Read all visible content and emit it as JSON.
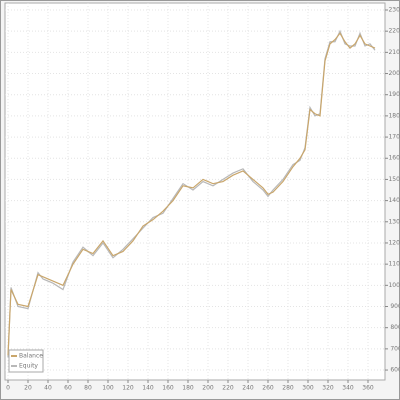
{
  "chart_data": {
    "type": "line",
    "x": [
      0,
      3,
      10,
      20,
      30,
      35,
      45,
      55,
      65,
      75,
      85,
      95,
      105,
      115,
      125,
      135,
      145,
      155,
      165,
      175,
      185,
      195,
      205,
      215,
      225,
      235,
      245,
      255,
      260,
      265,
      275,
      285,
      292,
      297,
      302,
      307,
      312,
      317,
      322,
      327,
      332,
      337,
      342,
      347,
      352,
      357,
      362,
      367
    ],
    "series": [
      {
        "name": "Balance",
        "color": "#c9a66b",
        "values": [
          6700,
          9800,
          9100,
          9000,
          10500,
          10400,
          10200,
          10000,
          11000,
          11700,
          11500,
          12100,
          11400,
          11600,
          12100,
          12800,
          13100,
          13500,
          14000,
          14700,
          14600,
          15000,
          14800,
          14900,
          15200,
          15400,
          15000,
          14600,
          14300,
          14400,
          14900,
          15600,
          16000,
          16400,
          18300,
          18100,
          18000,
          20600,
          21400,
          21600,
          21900,
          21500,
          21200,
          21400,
          21800,
          21400,
          21300,
          21200
        ]
      },
      {
        "name": "Equity",
        "color": "#b8b8b8",
        "values": [
          6600,
          9900,
          9000,
          8900,
          10600,
          10300,
          10100,
          9800,
          11100,
          11800,
          11400,
          12000,
          11300,
          11700,
          12200,
          12700,
          13200,
          13400,
          14100,
          14800,
          14500,
          14900,
          14700,
          15000,
          15300,
          15500,
          14900,
          14500,
          14200,
          14500,
          15000,
          15700,
          15900,
          16500,
          18400,
          18000,
          18100,
          20700,
          21500,
          21500,
          22000,
          21400,
          21300,
          21300,
          21900,
          21300,
          21400,
          21100
        ]
      }
    ],
    "xlim": [
      -3,
      377
    ],
    "xticks": [
      0,
      20,
      40,
      60,
      80,
      100,
      120,
      140,
      160,
      180,
      200,
      220,
      240,
      260,
      280,
      300,
      320,
      340,
      360
    ],
    "ylim": [
      5530,
      23330
    ],
    "yticks": [
      6000,
      7000,
      8000,
      9000,
      10000,
      11000,
      12000,
      13000,
      14000,
      15000,
      16000,
      17000,
      18000,
      19000,
      20000,
      21000,
      22000,
      23000
    ],
    "grid": true,
    "legend": "lower-left"
  }
}
